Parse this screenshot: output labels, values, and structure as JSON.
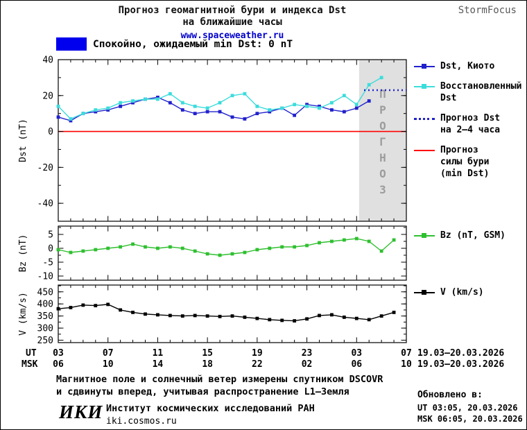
{
  "header": {
    "title_line1": "Прогноз геомагнитной бури и индекса Dst",
    "title_line2": "на ближайшие часы",
    "website": "www.spaceweather.ru",
    "brand": "StormFocus"
  },
  "status": {
    "color": "#0000ee",
    "text": "Спокойно, ожидаемый min Dst: 0 nT"
  },
  "forecast_label": "прогноз",
  "colors": {
    "forecast_region": "#e0e0e0",
    "forecast_label": "#9c9c9c",
    "dst_kyoto": "#2121cc",
    "dst_restored": "#3cdcdc",
    "dst_forecast": "#2121cc",
    "storm_level": "#ff0000",
    "bz": "#2fbf2f",
    "v": "#000000"
  },
  "legend_main": [
    {
      "label": "Dst, Киото",
      "color": "#2121cc",
      "style": "solid",
      "marker": true
    },
    {
      "label": "Восстановленный\nDst",
      "color": "#3cdcdc",
      "style": "solid",
      "marker": true
    },
    {
      "label": "Прогноз Dst\nна 2–4 часа",
      "color": "#2121cc",
      "style": "dotted",
      "marker": false
    },
    {
      "label": "Прогноз\nсилы бури\n(min Dst)",
      "color": "#ff0000",
      "style": "solid",
      "marker": false
    }
  ],
  "legend_bz": [
    {
      "label": "Bz (nT, GSM)",
      "color": "#2fbf2f",
      "style": "solid",
      "marker": true
    }
  ],
  "legend_v": [
    {
      "label": "V (km/s)",
      "color": "#000000",
      "style": "solid",
      "marker": true
    }
  ],
  "axis": {
    "ut_label": "UT",
    "msk_label": "MSK",
    "ut_ticks": [
      "03",
      "07",
      "11",
      "15",
      "19",
      "23",
      "03",
      "07"
    ],
    "msk_ticks": [
      "06",
      "10",
      "14",
      "18",
      "22",
      "02",
      "06",
      "10"
    ],
    "ut_date_range": "19.03–20.03.2026",
    "msk_date_range": "19.03–20.03.2026"
  },
  "footer": {
    "note_line1": "Магнитное поле и солнечный ветер измерены спутником DSCOVR",
    "note_line2": "и сдвинуты вперед, учитывая распространение L1—Земля",
    "updated_heading": "Обновлено в:",
    "updated_ut": "UT  03:05, 20.03.2026",
    "updated_msk": "MSK 06:05, 20.03.2026",
    "logo": "ИКИ",
    "institute": "Институт космических исследований РАН",
    "site": "iki.cosmos.ru"
  },
  "chart_data": [
    {
      "type": "line",
      "title": "Прогноз геомагнитной бури и индекса Dst на ближайшие часы",
      "xlabel": "",
      "ylabel": "Dst (nT)",
      "ylim": [
        -50,
        40
      ],
      "yticks": [
        -40,
        -20,
        0,
        20,
        40
      ],
      "yminor": 10,
      "xlim": [
        0,
        28
      ],
      "xticks": [
        0,
        4,
        8,
        12,
        16,
        20,
        24,
        28
      ],
      "forecast_region": [
        24.2,
        28
      ],
      "hline": {
        "y": 0,
        "color": "#ff0000",
        "label": "Прогноз силы бури (min Dst) = 0 nT"
      },
      "legend_position": "right",
      "grid": false,
      "series": [
        {
          "name": "Dst, Киото",
          "color": "#2121cc",
          "marker": true,
          "x": [
            0,
            1,
            2,
            3,
            4,
            5,
            6,
            7,
            8,
            9,
            10,
            11,
            12,
            13,
            14,
            15,
            16,
            17,
            18,
            19,
            20,
            21,
            22,
            23,
            24,
            25
          ],
          "values": [
            8,
            6,
            10,
            11,
            12,
            14,
            16,
            18,
            19,
            16,
            12,
            10,
            11,
            11,
            8,
            7,
            10,
            11,
            13,
            9,
            15,
            14,
            12,
            11,
            13,
            17
          ]
        },
        {
          "name": "Восстановленный Dst",
          "color": "#3cdcdc",
          "marker": true,
          "x": [
            0,
            1,
            2,
            3,
            4,
            5,
            6,
            7,
            8,
            9,
            10,
            11,
            12,
            13,
            14,
            15,
            16,
            17,
            18,
            19,
            20,
            21,
            22,
            23,
            24,
            25,
            26
          ],
          "values": [
            14,
            7,
            10,
            12,
            13,
            16,
            17,
            18,
            18,
            21,
            16,
            14,
            13,
            16,
            20,
            21,
            14,
            12,
            13,
            15,
            14,
            13,
            16,
            20,
            15,
            26,
            30
          ]
        },
        {
          "name": "Прогноз Dst на 2–4 часа",
          "color": "#2121cc",
          "marker": false,
          "dash": "2 4",
          "width": 2.4,
          "x": [
            24.6,
            28
          ],
          "values": [
            23,
            23
          ]
        }
      ]
    },
    {
      "type": "line",
      "title": "",
      "xlabel": "",
      "ylabel": "Bz (nT)",
      "ylim": [
        -11.5,
        8
      ],
      "yticks": [
        -10,
        -5,
        0,
        5
      ],
      "yminor": 2.5,
      "xlim": [
        0,
        28
      ],
      "xticks": [
        0,
        4,
        8,
        12,
        16,
        20,
        24,
        28
      ],
      "grid": false,
      "series": [
        {
          "name": "Bz (nT, GSM)",
          "color": "#2fbf2f",
          "marker": true,
          "x": [
            0,
            1,
            2,
            3,
            4,
            5,
            6,
            7,
            8,
            9,
            10,
            11,
            12,
            13,
            14,
            15,
            16,
            17,
            18,
            19,
            20,
            21,
            22,
            23,
            24,
            25,
            26,
            27
          ],
          "values": [
            -0.5,
            -1.5,
            -1,
            -0.5,
            0,
            0.5,
            1.5,
            0.5,
            0,
            0.5,
            0,
            -1,
            -2,
            -2.5,
            -2,
            -1.5,
            -0.5,
            0,
            0.5,
            0.5,
            1,
            2,
            2.5,
            3,
            3.5,
            2.5,
            -1,
            3
          ]
        }
      ]
    },
    {
      "type": "line",
      "title": "",
      "xlabel": "",
      "ylabel": "V (km/s)",
      "ylim": [
        240,
        478
      ],
      "yticks": [
        250,
        300,
        350,
        400,
        450
      ],
      "yminor": 25,
      "xlim": [
        0,
        28
      ],
      "xticks": [
        0,
        4,
        8,
        12,
        16,
        20,
        24,
        28
      ],
      "grid": false,
      "series": [
        {
          "name": "V (km/s)",
          "color": "#000000",
          "marker": true,
          "x": [
            0,
            1,
            2,
            3,
            4,
            5,
            6,
            7,
            8,
            9,
            10,
            11,
            12,
            13,
            14,
            15,
            16,
            17,
            18,
            19,
            20,
            21,
            22,
            23,
            24,
            25,
            26,
            27
          ],
          "values": [
            380,
            385,
            395,
            393,
            398,
            375,
            365,
            358,
            355,
            352,
            350,
            352,
            350,
            348,
            350,
            345,
            340,
            335,
            332,
            330,
            338,
            352,
            355,
            345,
            340,
            335,
            350,
            365
          ]
        }
      ]
    }
  ]
}
